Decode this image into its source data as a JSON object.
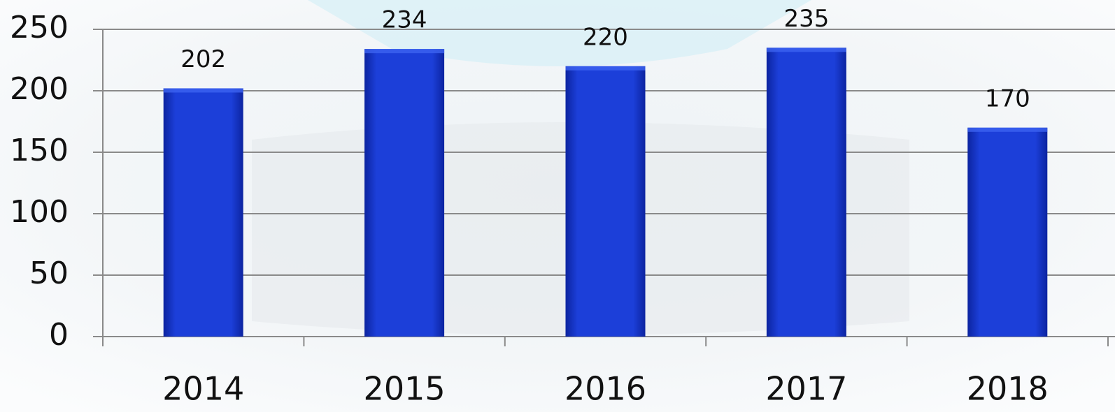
{
  "chart_data": {
    "type": "bar",
    "categories": [
      "2014",
      "2015",
      "2016",
      "2017",
      "2018"
    ],
    "values": [
      202,
      234,
      220,
      235,
      170
    ],
    "color": "#1c3fd9",
    "ylim": [
      0,
      250
    ],
    "yticks": [
      0,
      50,
      100,
      150,
      200,
      250
    ],
    "grid": true
  }
}
